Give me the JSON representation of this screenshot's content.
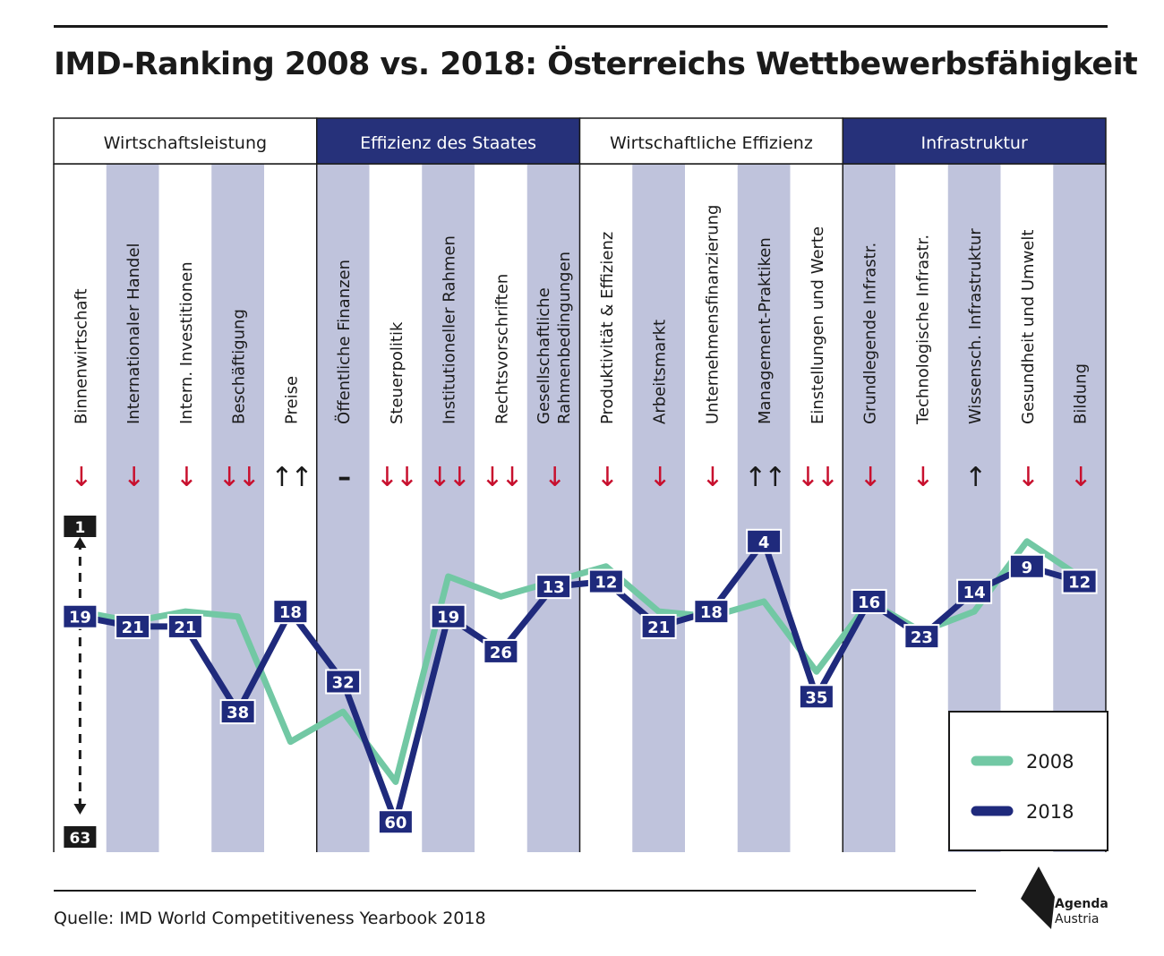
{
  "title": "IMD-Ranking 2008 vs. 2018: Österreichs Wettbewerbsfähigkeit",
  "source": "Quelle: IMD World Competitiveness Yearbook 2018",
  "logo": {
    "line1": "Agenda",
    "line2": "Austria"
  },
  "colors": {
    "s2008": "#72c8a4",
    "s2018": "#1f2a7c",
    "header_dark": "#26317a",
    "stripe": "#bfc3dc",
    "arrow": "#c8102e"
  },
  "chart_data": {
    "type": "line",
    "title": "IMD-Ranking 2008 vs. 2018: Österreichs Wettbewerbsfähigkeit",
    "groups": [
      {
        "label": "Wirtschaftsleistung",
        "span": 5,
        "dark": false
      },
      {
        "label": "Effizienz des Staates",
        "span": 5,
        "dark": true
      },
      {
        "label": "Wirtschaftliche Effizienz",
        "span": 5,
        "dark": false
      },
      {
        "label": "Infrastruktur",
        "span": 5,
        "dark": true
      }
    ],
    "categories": [
      [
        "Binnenwirtschaft"
      ],
      [
        "Internationaler Handel"
      ],
      [
        "Intern. Investitionen"
      ],
      [
        "Beschäftigung"
      ],
      [
        "Preise"
      ],
      [
        "Öffentliche Finanzen"
      ],
      [
        "Steuerpolitik"
      ],
      [
        "Institutioneller Rahmen"
      ],
      [
        "Rechtsvorschriften"
      ],
      [
        "Gesellschaftliche",
        "Rahmenbedingungen"
      ],
      [
        "Produktivität & Effizienz"
      ],
      [
        "Arbeitsmarkt"
      ],
      [
        "Unternehmensfinanzierung"
      ],
      [
        "Management-Praktiken"
      ],
      [
        "Einstellungen und Werte"
      ],
      [
        "Grundlegende Infrastr."
      ],
      [
        "Technologische Infrastr."
      ],
      [
        "Wissensch. Infrastruktur"
      ],
      [
        "Gesundheit und Umwelt"
      ],
      [
        "Bildung"
      ]
    ],
    "trend_arrows": [
      "↓",
      "↓",
      "↓",
      "↓↓",
      "↑↑",
      "–",
      "↓↓",
      "↓↓",
      "↓↓",
      "↓",
      "↓",
      "↓",
      "↓",
      "↑↑",
      "↓↓",
      "↓",
      "↓",
      "↑",
      "↓",
      "↓"
    ],
    "series": [
      {
        "name": "2008",
        "values": [
          18,
          20,
          18,
          19,
          44,
          38,
          52,
          11,
          15,
          12,
          9,
          18,
          19,
          16,
          30,
          16,
          22,
          18,
          4,
          11
        ]
      },
      {
        "name": "2018",
        "values": [
          19,
          21,
          21,
          38,
          18,
          32,
          60,
          19,
          26,
          13,
          12,
          21,
          18,
          4,
          35,
          16,
          23,
          14,
          9,
          12
        ]
      }
    ],
    "y_axis": {
      "top_label": "1",
      "bottom_label": "63",
      "inverted": true
    },
    "ylim": [
      1,
      63
    ],
    "legend": {
      "placement": "bottom-right"
    }
  }
}
